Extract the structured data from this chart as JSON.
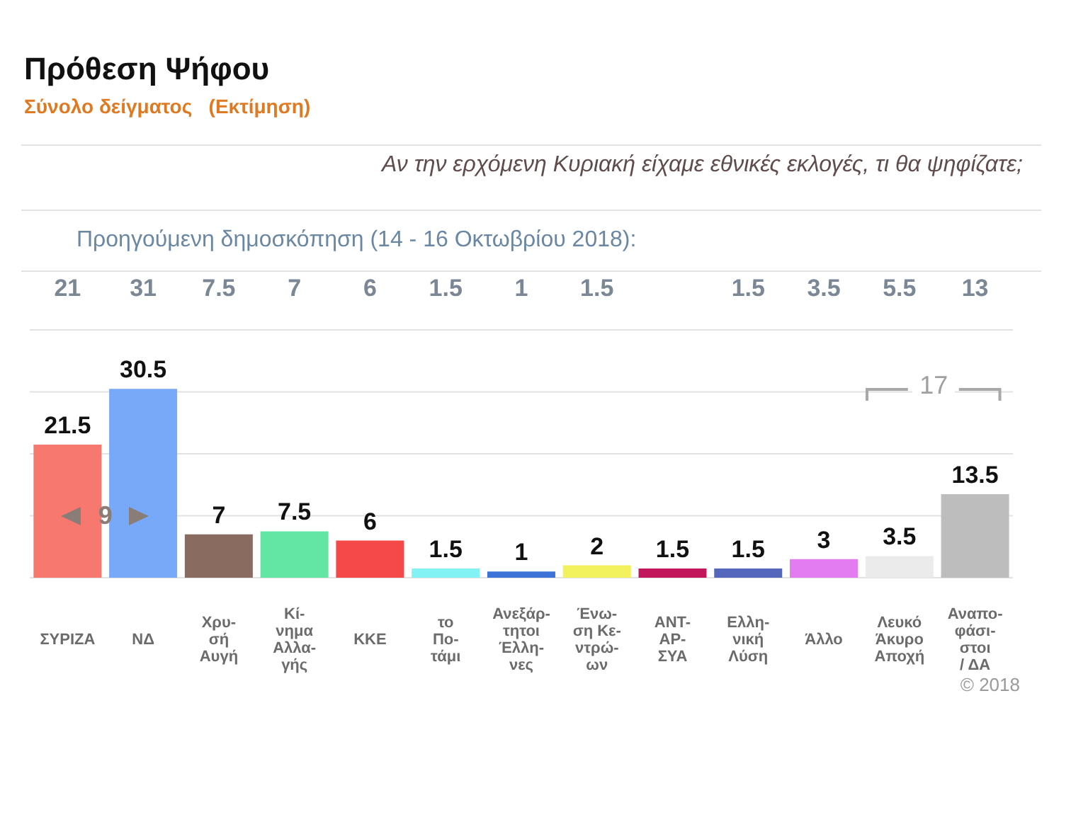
{
  "chart_data": {
    "type": "bar",
    "title": "Πρόθεση Ψήφου",
    "subtitle": "Σύνολο δείγματος   (Εκτίμηση)",
    "categories": [
      "ΣΥΡΙΖΑ",
      "ΝΔ",
      "Χρυ-\nσή\nΑυγή",
      "Κί-\nνημα\nΑλλα-\nγής",
      "ΚΚΕ",
      "το\nΠο-\nτάμι",
      "Ανεξάρ-\nτητοι\nΈλλη-\nνες",
      "Ένω-\nση Κε-\nντρώ-\nων",
      "ΑΝΤ-\nΑΡ-\nΣΥΑ",
      "Ελλη-\nνική\nΛύση",
      "Άλλο",
      "Λευκό\nΆκυρο\nΑποχή",
      "Αναπο-\nφάσι-\nστοι\n/ ΔΑ"
    ],
    "values": [
      21.5,
      30.5,
      7,
      7.5,
      6,
      1.5,
      1,
      2,
      1.5,
      1.5,
      3,
      3.5,
      13.5
    ],
    "colors": [
      "#f7786f",
      "#78a8f8",
      "#8a6b60",
      "#63e6a4",
      "#f54848",
      "#82f2f5",
      "#3d72d6",
      "#f2f25e",
      "#c2185b",
      "#5567bd",
      "#e37cf0",
      "#ebebeb",
      "#bdbdbd"
    ],
    "ylim": [
      0,
      40
    ],
    "yticks": [
      {
        "value": 0,
        "label": null
      },
      {
        "value": 10,
        "label": null
      },
      {
        "value": 20,
        "label": null
      },
      {
        "value": 30,
        "label": null
      },
      {
        "value": 40,
        "label": null
      }
    ],
    "tick_labels": "x",
    "grid": "y",
    "data_labels": true,
    "annotations": [
      "Αν την ερχόμενη Κυριακή είχαμε εθνικές εκλογές, τι θα ψηφίζατε;",
      "Προηγούμενη δημοσκόπηση (14 - 16 Οκτωβρίου 2018):",
      "9",
      "17",
      "© 2018",
      "21",
      "31",
      "7.5",
      "7",
      "6",
      "1.5",
      "1",
      "1.5",
      "1.5",
      "3.5",
      "5.5",
      "13"
    ]
  }
}
